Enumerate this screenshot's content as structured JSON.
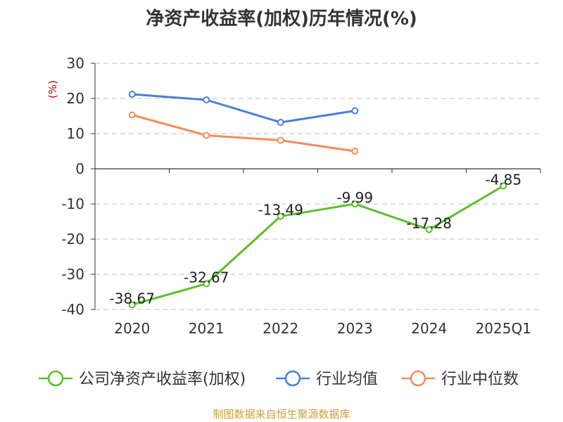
{
  "colors": {
    "company": "#5abf2a",
    "industry_avg": "#4a7fd8",
    "industry_median": "#f58c5a",
    "grid": "#cccccc",
    "axis": "#333333",
    "unit": "#cc0000",
    "source": "#c8a03c"
  },
  "chart_data": {
    "type": "line",
    "title": "净资产收益率(加权)历年情况(%)",
    "ylabel": "(%)",
    "xlabel": "",
    "categories": [
      "2020",
      "2021",
      "2022",
      "2023",
      "2024",
      "2025Q1"
    ],
    "ylim": [
      -40,
      30
    ],
    "yticks": [
      30,
      20,
      10,
      0,
      -10,
      -20,
      -30,
      -40
    ],
    "grid": true,
    "legend_position": "bottom",
    "series": [
      {
        "name": "公司净资产收益率(加权)",
        "color_key": "company",
        "values": [
          -38.67,
          -32.67,
          -13.49,
          -9.99,
          -17.28,
          -4.85
        ],
        "show_labels": true
      },
      {
        "name": "行业均值",
        "color_key": "industry_avg",
        "values": [
          21.2,
          19.6,
          13.2,
          16.5,
          null,
          null
        ],
        "show_labels": false
      },
      {
        "name": "行业中位数",
        "color_key": "industry_median",
        "values": [
          15.3,
          9.5,
          8.1,
          5.0,
          null,
          null
        ],
        "show_labels": false
      }
    ],
    "value_labels": [
      "-38.67",
      "-32.67",
      "-13.49",
      "-9.99",
      "-17.28",
      "-4.85"
    ]
  },
  "source": "制图数据来自恒生聚源数据库"
}
